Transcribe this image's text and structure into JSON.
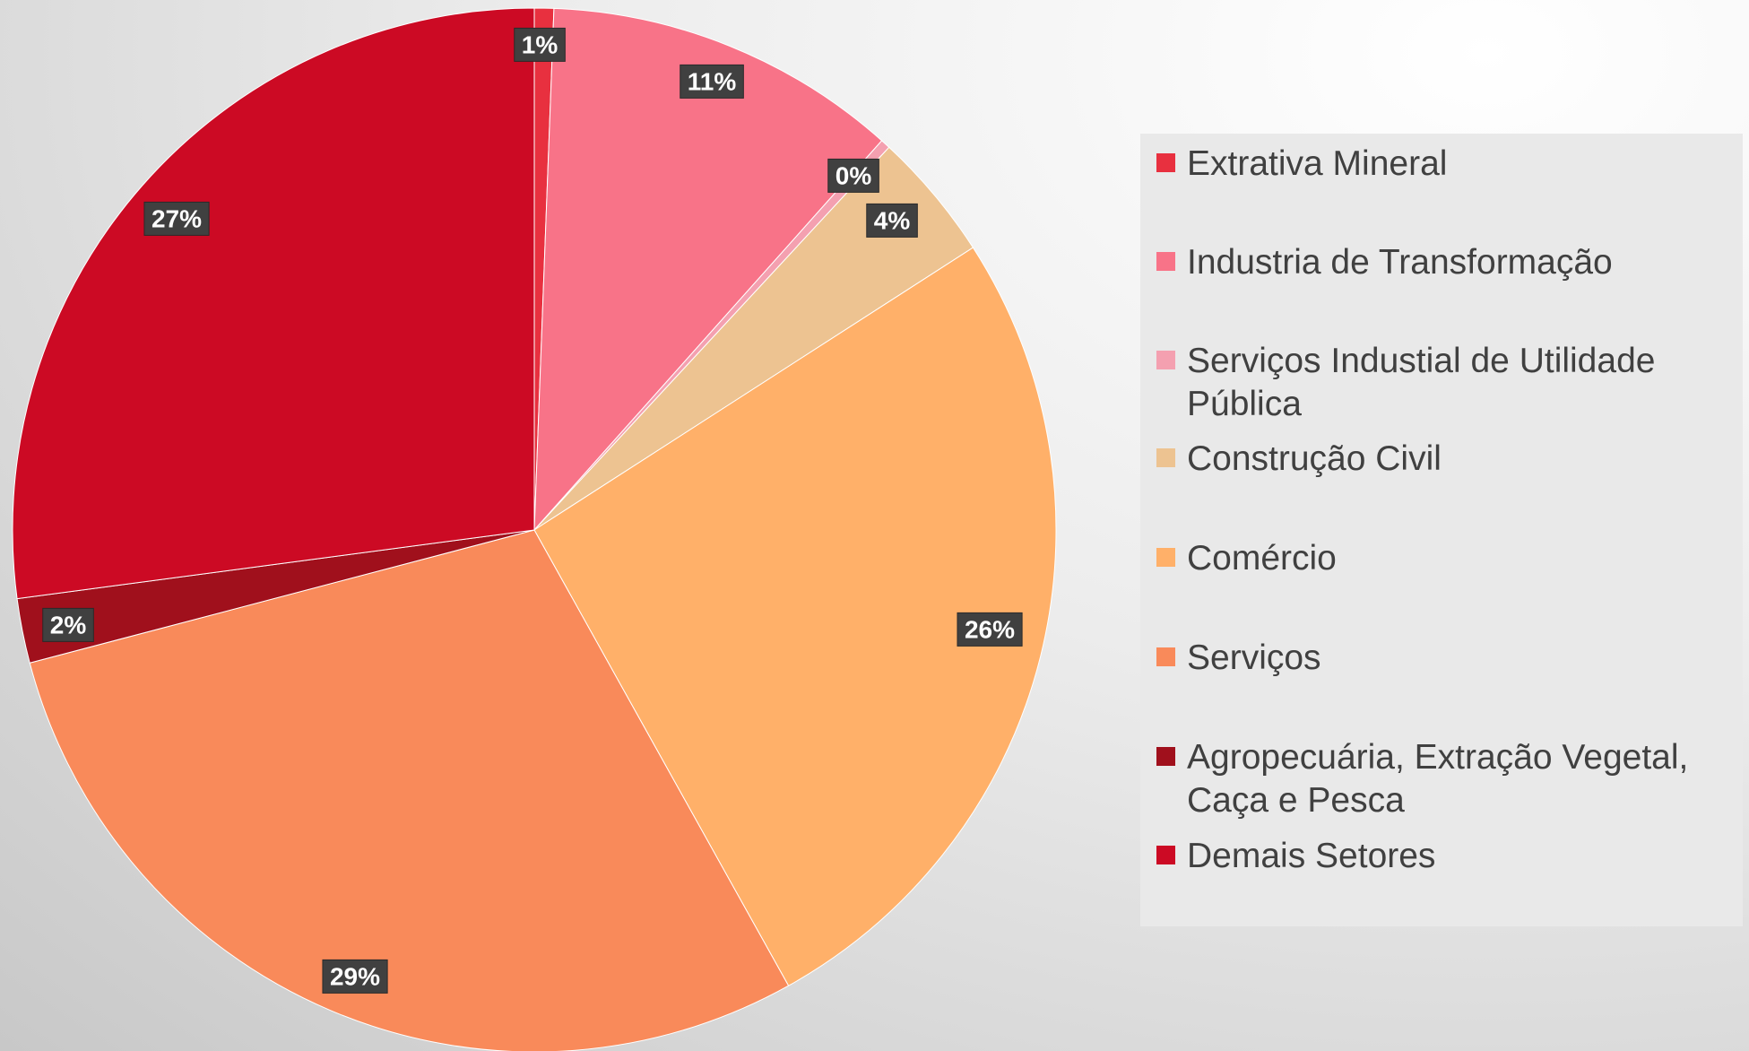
{
  "chart_data": {
    "type": "pie",
    "categories": [
      "Extrativa Mineral",
      "Industria de Transformação",
      "Serviços Industial de Utilidade Pública",
      "Construção Civil",
      "Comércio",
      "Serviços",
      "Agropecuária, Extração Vegetal, Caça e Pesca",
      "Demais Setores"
    ],
    "values": [
      0.6,
      11,
      0.3,
      4,
      26,
      29,
      2,
      27.1
    ],
    "value_labels": [
      "1%",
      "11%",
      "0%",
      "4%",
      "26%",
      "29%",
      "2%",
      "27%"
    ],
    "colors": [
      "#e8303f",
      "#f87388",
      "#f4a0b0",
      "#edc391",
      "#ffb069",
      "#f98a5a",
      "#a0101c",
      "#cc0a24"
    ],
    "legend": "right"
  }
}
